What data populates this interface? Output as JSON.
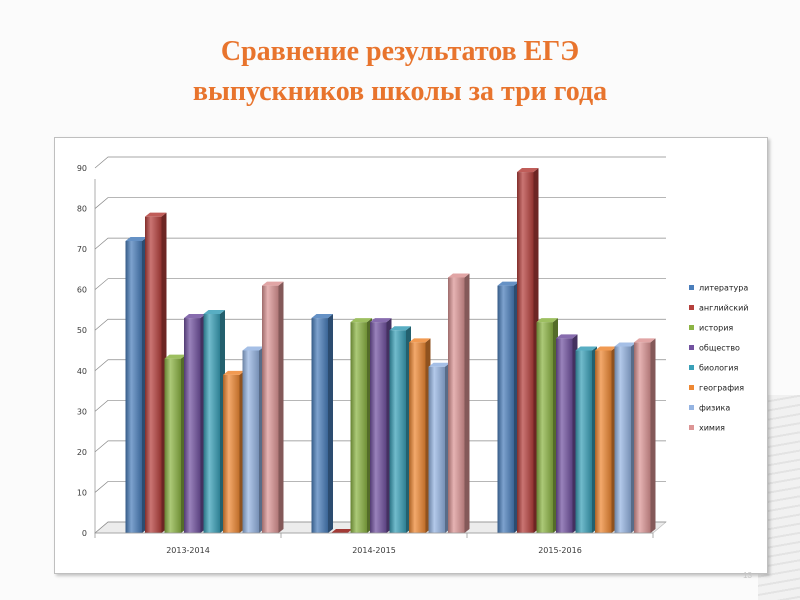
{
  "title_lines": [
    "Сравнение результатов ЕГЭ",
    "выпускников школы за три года"
  ],
  "slide_number": "13",
  "chart_data": {
    "type": "bar",
    "categories": [
      "2013-2014",
      "2014-2015",
      "2015-2016"
    ],
    "ylim": [
      0,
      90
    ],
    "yticks": [
      0,
      10,
      20,
      30,
      40,
      50,
      60,
      70,
      80,
      90
    ],
    "grid": true,
    "legend_position": "right",
    "series": [
      {
        "name": "литература",
        "color": "#4a7ebb",
        "values": [
          72,
          53,
          61
        ]
      },
      {
        "name": "английский",
        "color": "#b5403c",
        "values": [
          78,
          0,
          89
        ]
      },
      {
        "name": "история",
        "color": "#8cb444",
        "values": [
          43,
          52,
          52
        ]
      },
      {
        "name": "общество",
        "color": "#7252a0",
        "values": [
          53,
          52,
          48
        ]
      },
      {
        "name": "биология",
        "color": "#3aa0b8",
        "values": [
          54,
          50,
          45
        ]
      },
      {
        "name": "география",
        "color": "#ee8833",
        "values": [
          39,
          47,
          45
        ]
      },
      {
        "name": "физика",
        "color": "#95b4e2",
        "values": [
          45,
          41,
          46
        ]
      },
      {
        "name": "химия",
        "color": "#dc9595",
        "values": [
          61,
          63,
          47
        ]
      }
    ]
  }
}
